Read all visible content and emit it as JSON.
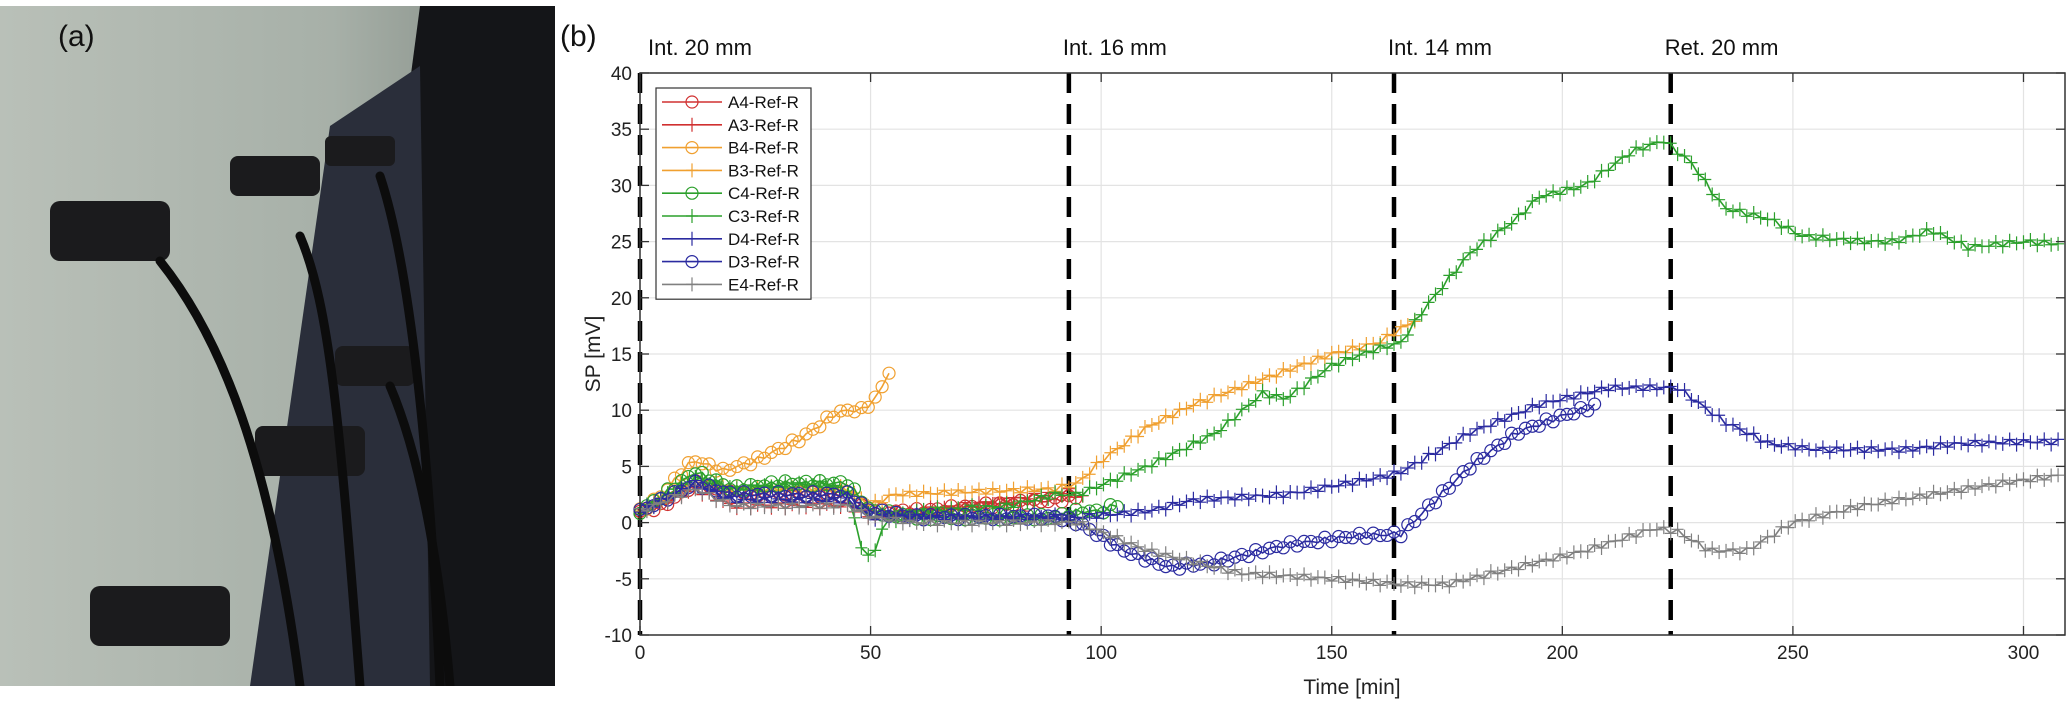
{
  "panel_a_label": "(a)",
  "panel_b_label": "(b)",
  "chart_data": {
    "type": "line",
    "title": "",
    "xlabel": "Time [min]",
    "ylabel": "SP [mV]",
    "xlim": [
      0,
      309
    ],
    "ylim": [
      -10,
      40
    ],
    "xticks": [
      0,
      50,
      100,
      150,
      200,
      250,
      300
    ],
    "yticks": [
      -10,
      -5,
      0,
      5,
      10,
      15,
      20,
      25,
      30,
      35,
      40
    ],
    "grid": true,
    "legend_position": "top-left",
    "annotations": [
      {
        "x": 0,
        "label": "Int. 20 mm"
      },
      {
        "x": 93,
        "label": "Int. 16 mm"
      },
      {
        "x": 163.5,
        "label": "Int. 14 mm"
      },
      {
        "x": 223.5,
        "label": "Ret. 20 mm"
      }
    ],
    "series": [
      {
        "name": "A4-Ref-R",
        "color": "#D03030",
        "marker": "circle",
        "points": [
          [
            0,
            1
          ],
          [
            5,
            1.5
          ],
          [
            12,
            3.5
          ],
          [
            20,
            2.5
          ],
          [
            30,
            2.5
          ],
          [
            45,
            2.5
          ],
          [
            50,
            1
          ],
          [
            60,
            1
          ],
          [
            75,
            1.5
          ],
          [
            90,
            2
          ],
          [
            95,
            2.3
          ]
        ]
      },
      {
        "name": "A3-Ref-R",
        "color": "#D03030",
        "marker": "plus",
        "points": [
          [
            0,
            1
          ],
          [
            12,
            3
          ],
          [
            20,
            1.5
          ],
          [
            45,
            1.5
          ],
          [
            50,
            0.5
          ],
          [
            70,
            1.5
          ],
          [
            88,
            2.5
          ],
          [
            93,
            2.8
          ],
          [
            96,
            2.2
          ]
        ]
      },
      {
        "name": "B4-Ref-R",
        "color": "#F0A030",
        "marker": "circle",
        "points": [
          [
            0,
            1
          ],
          [
            5,
            2.5
          ],
          [
            10,
            5
          ],
          [
            12,
            5.5
          ],
          [
            18,
            4.6
          ],
          [
            25,
            5.5
          ],
          [
            35,
            7.5
          ],
          [
            42,
            9.6
          ],
          [
            45,
            10
          ],
          [
            48,
            10
          ],
          [
            51,
            11
          ],
          [
            53,
            12.5
          ],
          [
            55,
            14.3
          ]
        ]
      },
      {
        "name": "B3-Ref-R",
        "color": "#F0A030",
        "marker": "plus",
        "points": [
          [
            0,
            1
          ],
          [
            12,
            3.5
          ],
          [
            20,
            3
          ],
          [
            45,
            3
          ],
          [
            50,
            1.5
          ],
          [
            55,
            2.5
          ],
          [
            90,
            3
          ],
          [
            95,
            3.5
          ],
          [
            100,
            5.5
          ],
          [
            110,
            8.5
          ],
          [
            120,
            10.5
          ],
          [
            130,
            12
          ],
          [
            140,
            13.5
          ],
          [
            150,
            15
          ],
          [
            160,
            16
          ],
          [
            168,
            18
          ]
        ]
      },
      {
        "name": "C4-Ref-R",
        "color": "#2CA02C",
        "marker": "circle",
        "points": [
          [
            0,
            1
          ],
          [
            12,
            4.5
          ],
          [
            20,
            3
          ],
          [
            30,
            3.5
          ],
          [
            45,
            3.5
          ],
          [
            50,
            1
          ],
          [
            60,
            0.5
          ],
          [
            90,
            0.5
          ],
          [
            95,
            1
          ],
          [
            100,
            1
          ],
          [
            104,
            1.7
          ]
        ]
      },
      {
        "name": "C3-Ref-R",
        "color": "#2CA02C",
        "marker": "plus",
        "points": [
          [
            0,
            1
          ],
          [
            12,
            4
          ],
          [
            20,
            3
          ],
          [
            40,
            3.5
          ],
          [
            45,
            2.5
          ],
          [
            48,
            -2
          ],
          [
            50,
            -3.5
          ],
          [
            53,
            0
          ],
          [
            60,
            1
          ],
          [
            80,
            1.5
          ],
          [
            90,
            2.5
          ],
          [
            95,
            2.5
          ],
          [
            110,
            5
          ],
          [
            125,
            8
          ],
          [
            135,
            11.5
          ],
          [
            140,
            11
          ],
          [
            150,
            14
          ],
          [
            160,
            15.5
          ],
          [
            165,
            16
          ],
          [
            170,
            19
          ],
          [
            180,
            24
          ],
          [
            190,
            27
          ],
          [
            195,
            29
          ],
          [
            205,
            30
          ],
          [
            215,
            33
          ],
          [
            222,
            34
          ],
          [
            228,
            32
          ],
          [
            235,
            28
          ],
          [
            245,
            27
          ],
          [
            252,
            25.5
          ],
          [
            265,
            25
          ],
          [
            272,
            25
          ],
          [
            280,
            26
          ],
          [
            288,
            24.5
          ],
          [
            300,
            25
          ],
          [
            308,
            24.8
          ]
        ]
      },
      {
        "name": "D4-Ref-R",
        "color": "#2B2BA0",
        "marker": "plus",
        "points": [
          [
            0,
            1
          ],
          [
            12,
            3.5
          ],
          [
            20,
            2
          ],
          [
            45,
            2
          ],
          [
            50,
            0.5
          ],
          [
            60,
            0.5
          ],
          [
            95,
            0.5
          ],
          [
            110,
            1
          ],
          [
            120,
            2
          ],
          [
            140,
            2.5
          ],
          [
            160,
            4
          ],
          [
            165,
            4.5
          ],
          [
            180,
            8
          ],
          [
            195,
            10.5
          ],
          [
            210,
            12
          ],
          [
            225,
            12
          ],
          [
            235,
            9
          ],
          [
            245,
            7
          ],
          [
            255,
            6.5
          ],
          [
            275,
            6.5
          ],
          [
            285,
            7
          ],
          [
            300,
            7.2
          ],
          [
            308,
            7.2
          ]
        ]
      },
      {
        "name": "D3-Ref-R",
        "color": "#2B2BA0",
        "marker": "circle",
        "points": [
          [
            0,
            1
          ],
          [
            12,
            3.5
          ],
          [
            20,
            2.5
          ],
          [
            45,
            2.5
          ],
          [
            50,
            1
          ],
          [
            60,
            0.5
          ],
          [
            90,
            0.5
          ],
          [
            95,
            0
          ],
          [
            105,
            -2.5
          ],
          [
            115,
            -4
          ],
          [
            125,
            -3.5
          ],
          [
            140,
            -2
          ],
          [
            155,
            -1.2
          ],
          [
            165,
            -1
          ],
          [
            170,
            1
          ],
          [
            180,
            5
          ],
          [
            190,
            8
          ],
          [
            200,
            9.5
          ],
          [
            208,
            10.5
          ]
        ]
      },
      {
        "name": "E4-Ref-R",
        "color": "#808080",
        "marker": "plus",
        "points": [
          [
            0,
            1
          ],
          [
            12,
            3
          ],
          [
            20,
            1.5
          ],
          [
            45,
            1.5
          ],
          [
            50,
            0.5
          ],
          [
            60,
            0
          ],
          [
            95,
            0
          ],
          [
            110,
            -2.5
          ],
          [
            130,
            -4.5
          ],
          [
            150,
            -5
          ],
          [
            165,
            -5.5
          ],
          [
            175,
            -5.5
          ],
          [
            190,
            -4
          ],
          [
            205,
            -2.5
          ],
          [
            220,
            -0.5
          ],
          [
            225,
            -0.8
          ],
          [
            232,
            -2.5
          ],
          [
            240,
            -2.5
          ],
          [
            250,
            0
          ],
          [
            265,
            1.5
          ],
          [
            280,
            2.5
          ],
          [
            295,
            3.5
          ],
          [
            308,
            4.2
          ]
        ]
      }
    ]
  }
}
